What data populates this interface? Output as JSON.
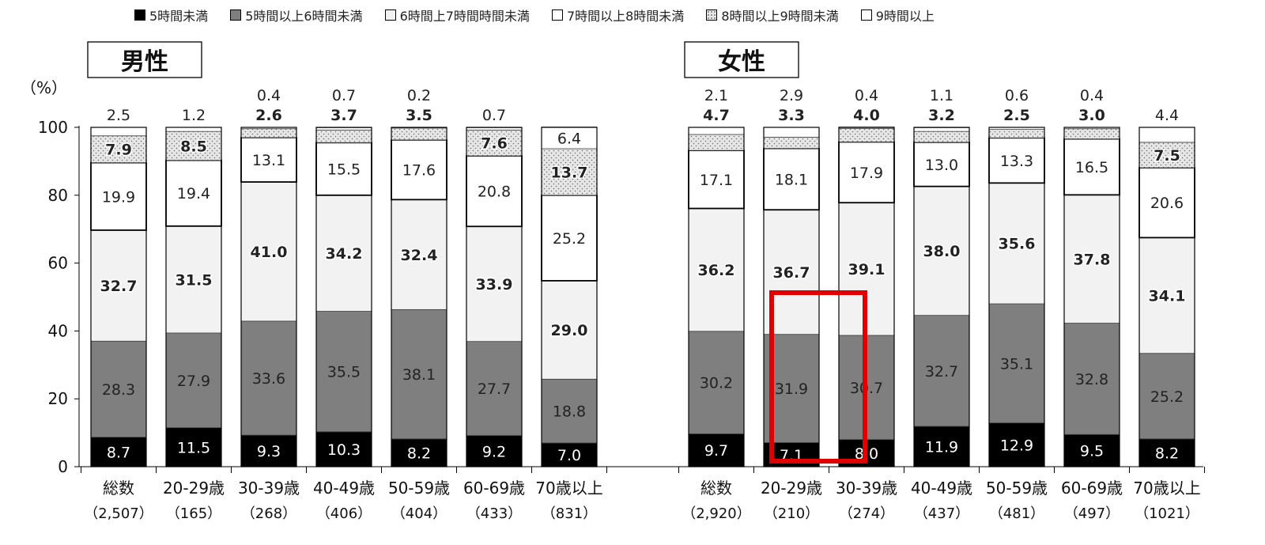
{
  "legend": [
    {
      "key": "s5",
      "label": "5時間未満"
    },
    {
      "key": "s6",
      "label": "5時間以上6時間未満"
    },
    {
      "key": "s7",
      "label": "6時間上7時間時間未満"
    },
    {
      "key": "s8",
      "label": "7時間以上8時間未満"
    },
    {
      "key": "s9",
      "label": "8時間以上9時間未満"
    },
    {
      "key": "s10",
      "label": "9時間以上"
    }
  ],
  "colors": {
    "s5": "#000000",
    "s6": "#7f7f7f",
    "s7": "#f2f2f2",
    "s8": "#ffffff",
    "s9": "#e6e6e6",
    "s10": "#ffffff",
    "highlight": "#e00000"
  },
  "chart_data": {
    "type": "bar",
    "stacked": true,
    "ylabel": "（%）",
    "ylim": [
      0,
      100
    ],
    "yticks": [
      0,
      20,
      40,
      60,
      80,
      100
    ],
    "groups": [
      {
        "title": "男性",
        "categories": [
          {
            "label": "総数",
            "n": "（2,507）",
            "values": [
              8.7,
              28.3,
              32.7,
              19.9,
              7.9,
              2.5
            ]
          },
          {
            "label": "20-29歳",
            "n": "（165）",
            "values": [
              11.5,
              27.9,
              31.5,
              19.4,
              8.5,
              1.2
            ]
          },
          {
            "label": "30-39歳",
            "n": "（268）",
            "values": [
              9.3,
              33.6,
              41.0,
              13.1,
              2.6,
              0.4
            ]
          },
          {
            "label": "40-49歳",
            "n": "（406）",
            "values": [
              10.3,
              35.5,
              34.2,
              15.5,
              3.7,
              0.7
            ]
          },
          {
            "label": "50-59歳",
            "n": "（404）",
            "values": [
              8.2,
              38.1,
              32.4,
              17.6,
              3.5,
              0.2
            ]
          },
          {
            "label": "60-69歳",
            "n": "（433）",
            "values": [
              9.2,
              27.7,
              33.9,
              20.8,
              7.6,
              0.7
            ]
          },
          {
            "label": "70歳以上",
            "n": "（831）",
            "values": [
              7.0,
              18.8,
              29.0,
              25.2,
              13.7,
              6.4
            ]
          }
        ]
      },
      {
        "title": "女性",
        "categories": [
          {
            "label": "総数",
            "n": "（2,920）",
            "values": [
              9.7,
              30.2,
              36.2,
              17.1,
              4.7,
              2.1
            ]
          },
          {
            "label": "20-29歳",
            "n": "（210）",
            "values": [
              7.1,
              31.9,
              36.7,
              18.1,
              3.3,
              2.9
            ]
          },
          {
            "label": "30-39歳",
            "n": "（274）",
            "values": [
              8.0,
              30.7,
              39.1,
              17.9,
              4.0,
              0.4
            ]
          },
          {
            "label": "40-49歳",
            "n": "（437）",
            "values": [
              11.9,
              32.7,
              38.0,
              13.0,
              3.2,
              1.1
            ]
          },
          {
            "label": "50-59歳",
            "n": "（481）",
            "values": [
              12.9,
              35.1,
              35.6,
              13.3,
              2.5,
              0.6
            ]
          },
          {
            "label": "60-69歳",
            "n": "（497）",
            "values": [
              9.5,
              32.8,
              37.8,
              16.5,
              3.0,
              0.4
            ]
          },
          {
            "label": "70歳以上",
            "n": "（1021）",
            "values": [
              8.2,
              25.2,
              34.1,
              20.6,
              7.5,
              4.4
            ]
          }
        ]
      }
    ]
  }
}
